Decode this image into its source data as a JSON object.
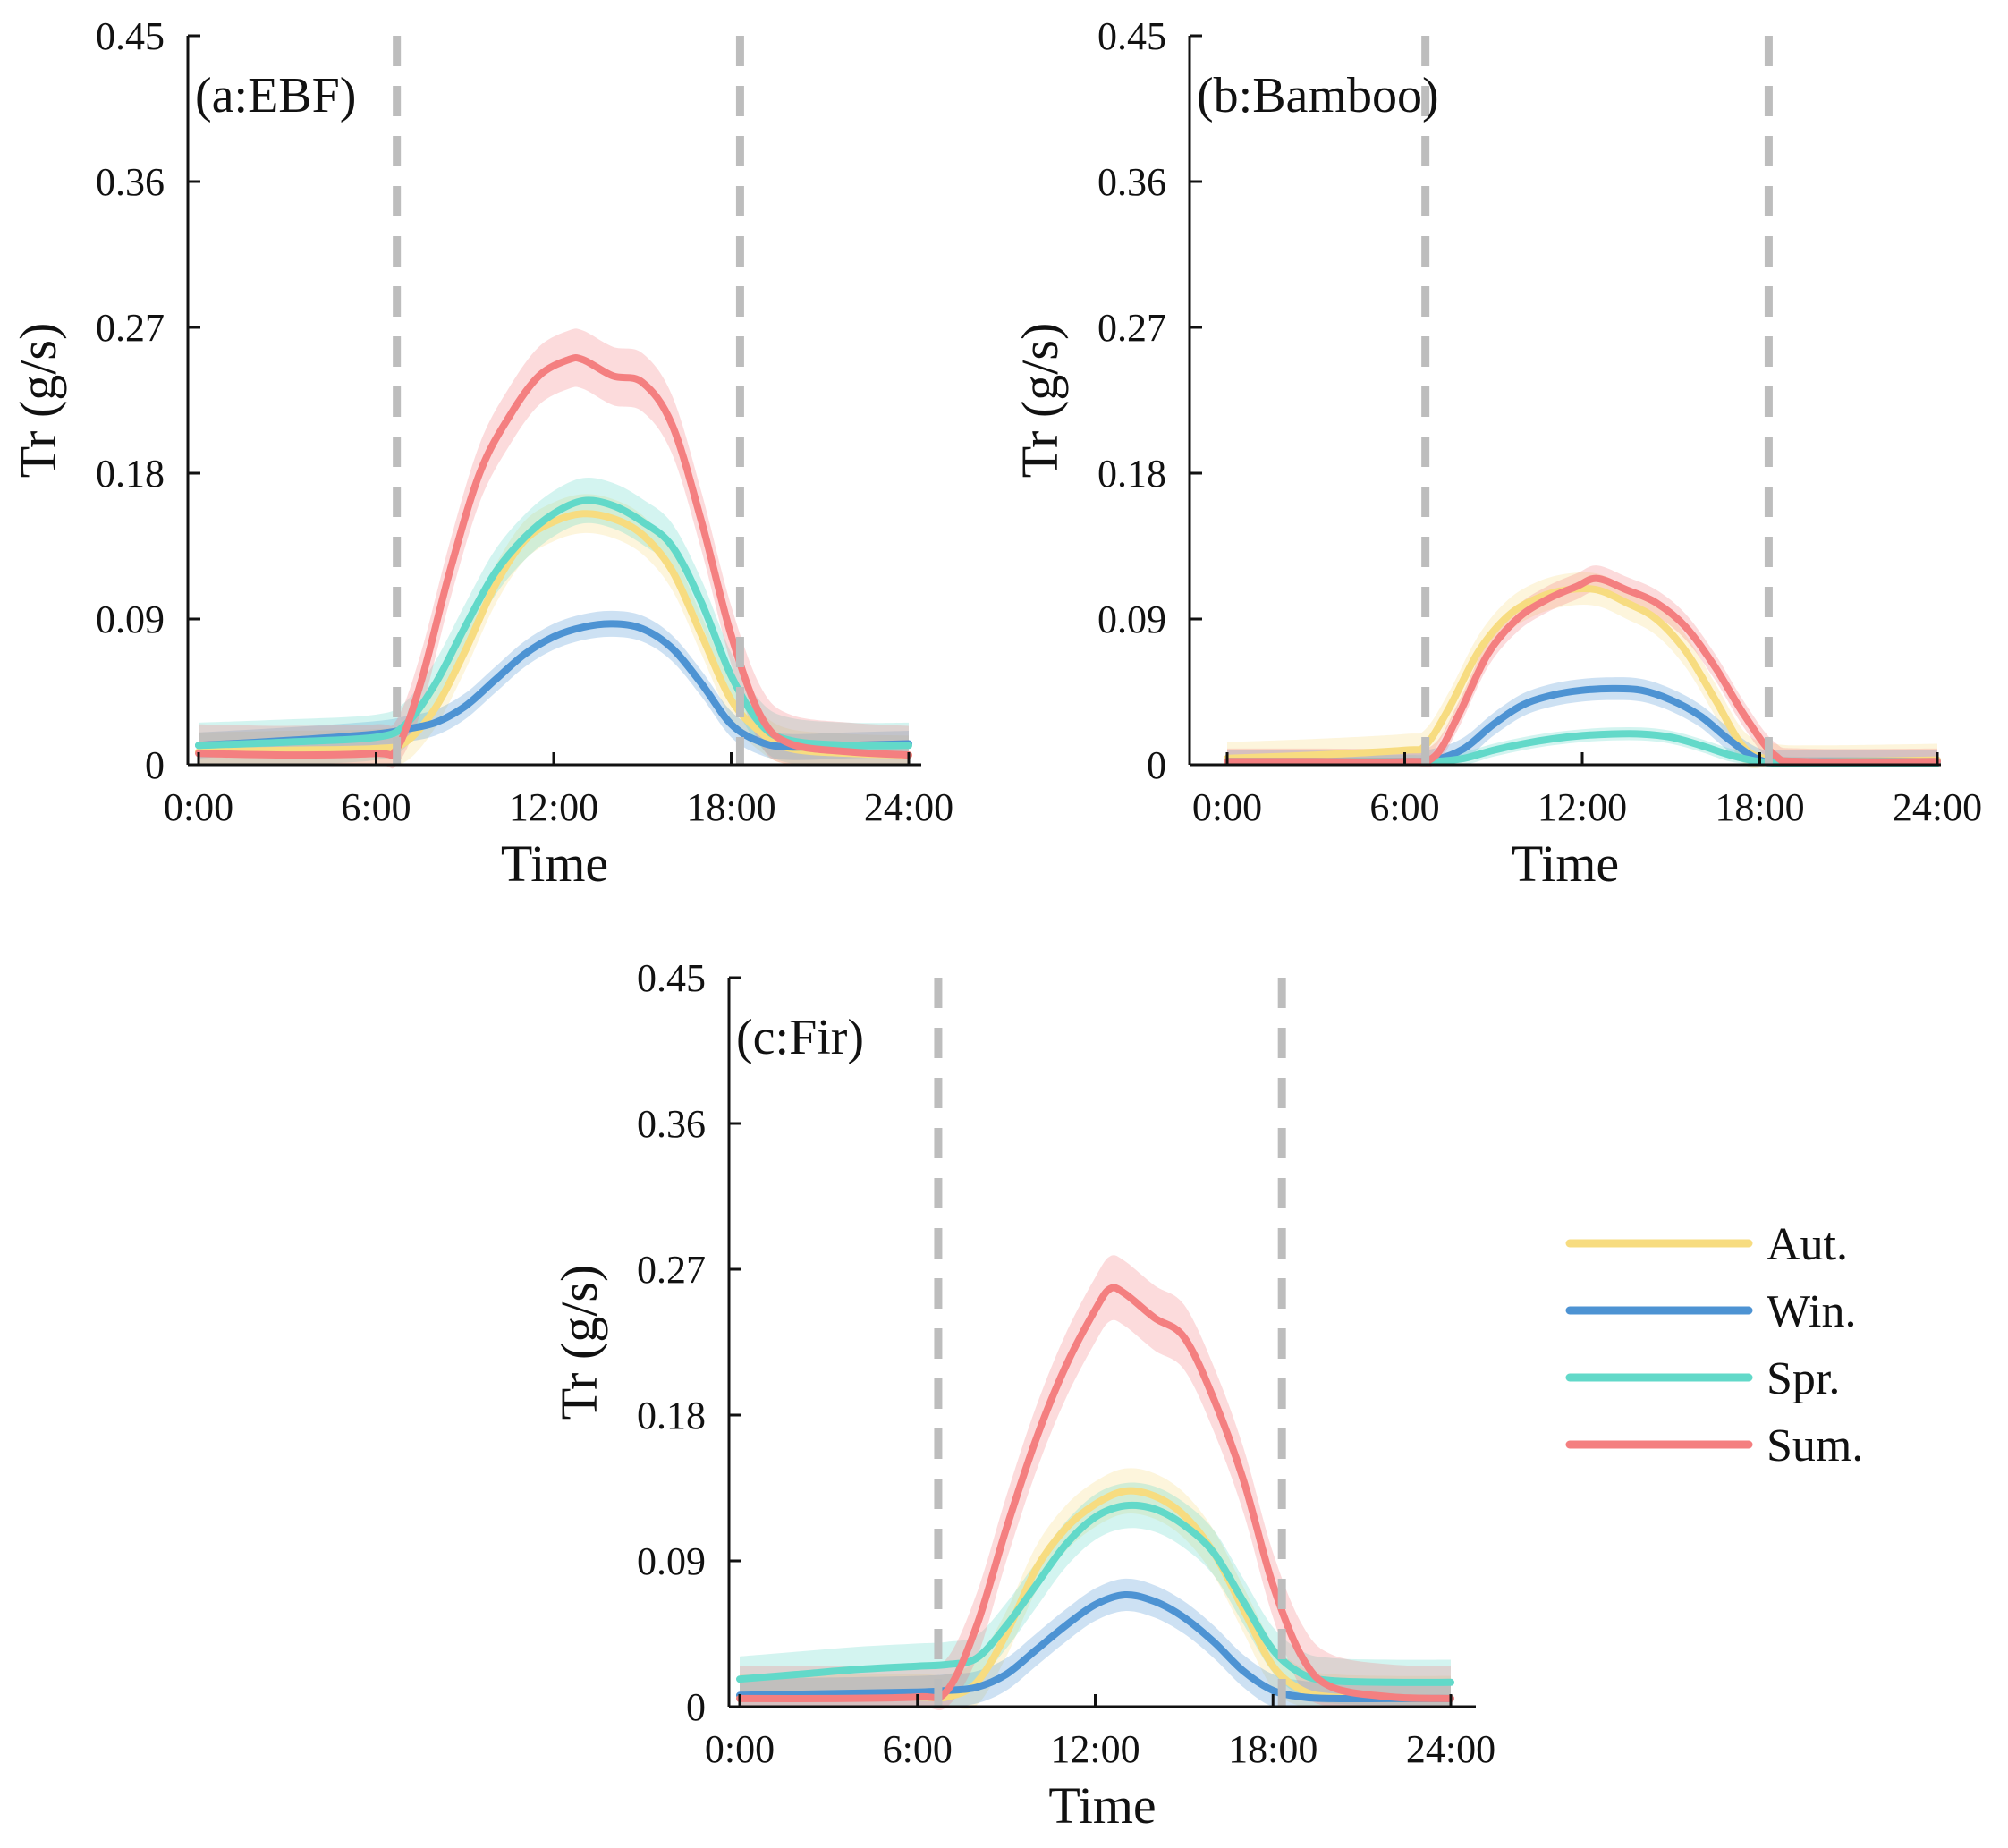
{
  "chart_data": [
    {
      "type": "line",
      "panel": "a",
      "label": "(a:EBF)",
      "xlabel": "Time",
      "ylabel": "Tr (g/s)",
      "xticks": [
        "0:00",
        "6:00",
        "12:00",
        "18:00",
        "24:00"
      ],
      "yticks": [
        "0",
        "0.09",
        "0.18",
        "0.27",
        "0.36",
        "0.45"
      ],
      "xlim": [
        0,
        24
      ],
      "ylim": [
        0,
        0.45
      ],
      "vlines": [
        6.7,
        18.3
      ],
      "series": [
        {
          "name": "Aut.",
          "color": "#F7DC80",
          "band": 0.012,
          "points": [
            [
              0,
              0.008
            ],
            [
              3,
              0.009
            ],
            [
              6,
              0.01
            ],
            [
              7,
              0.014
            ],
            [
              8,
              0.035
            ],
            [
              9,
              0.07
            ],
            [
              10,
              0.11
            ],
            [
              11,
              0.138
            ],
            [
              12,
              0.15
            ],
            [
              13,
              0.155
            ],
            [
              14,
              0.152
            ],
            [
              15,
              0.142
            ],
            [
              16,
              0.12
            ],
            [
              17,
              0.08
            ],
            [
              18,
              0.04
            ],
            [
              19,
              0.02
            ],
            [
              20,
              0.01
            ],
            [
              22,
              0.007
            ],
            [
              24,
              0.006
            ]
          ]
        },
        {
          "name": "Win.",
          "color": "#4D93D3",
          "band": 0.008,
          "points": [
            [
              0,
              0.012
            ],
            [
              3,
              0.015
            ],
            [
              6,
              0.019
            ],
            [
              7,
              0.022
            ],
            [
              8,
              0.026
            ],
            [
              9,
              0.036
            ],
            [
              10,
              0.052
            ],
            [
              11,
              0.068
            ],
            [
              12,
              0.079
            ],
            [
              13,
              0.085
            ],
            [
              14,
              0.087
            ],
            [
              15,
              0.084
            ],
            [
              16,
              0.072
            ],
            [
              17,
              0.05
            ],
            [
              18,
              0.025
            ],
            [
              19,
              0.014
            ],
            [
              20,
              0.011
            ],
            [
              22,
              0.012
            ],
            [
              24,
              0.013
            ]
          ]
        },
        {
          "name": "Spr.",
          "color": "#62D9C9",
          "band": 0.014,
          "points": [
            [
              0,
              0.012
            ],
            [
              3,
              0.014
            ],
            [
              6,
              0.017
            ],
            [
              7,
              0.025
            ],
            [
              8,
              0.05
            ],
            [
              9,
              0.085
            ],
            [
              10,
              0.118
            ],
            [
              11,
              0.14
            ],
            [
              12,
              0.155
            ],
            [
              13,
              0.163
            ],
            [
              14,
              0.16
            ],
            [
              15,
              0.15
            ],
            [
              16,
              0.135
            ],
            [
              17,
              0.1
            ],
            [
              18,
              0.055
            ],
            [
              19,
              0.025
            ],
            [
              20,
              0.015
            ],
            [
              22,
              0.012
            ],
            [
              24,
              0.012
            ]
          ]
        },
        {
          "name": "Sum.",
          "color": "#F47F80",
          "band": 0.018,
          "points": [
            [
              0,
              0.007
            ],
            [
              3,
              0.006
            ],
            [
              6,
              0.007
            ],
            [
              6.7,
              0.01
            ],
            [
              7.5,
              0.05
            ],
            [
              8.5,
              0.12
            ],
            [
              9.5,
              0.18
            ],
            [
              10.5,
              0.215
            ],
            [
              11.5,
              0.24
            ],
            [
              12.5,
              0.25
            ],
            [
              13,
              0.25
            ],
            [
              14,
              0.24
            ],
            [
              15,
              0.236
            ],
            [
              16,
              0.21
            ],
            [
              17,
              0.15
            ],
            [
              18,
              0.08
            ],
            [
              19,
              0.03
            ],
            [
              20,
              0.013
            ],
            [
              22,
              0.008
            ],
            [
              24,
              0.006
            ]
          ]
        }
      ]
    },
    {
      "type": "line",
      "panel": "b",
      "label": "(b:Bamboo)",
      "xlabel": "Time",
      "ylabel": "Tr (g/s)",
      "xticks": [
        "0:00",
        "6:00",
        "12:00",
        "18:00",
        "24:00"
      ],
      "yticks": [
        "0",
        "0.09",
        "0.18",
        "0.27",
        "0.36",
        "0.45"
      ],
      "xlim": [
        0,
        24
      ],
      "ylim": [
        0,
        0.45
      ],
      "vlines": [
        6.7,
        18.3
      ],
      "series": [
        {
          "name": "Aut.",
          "color": "#F7DC80",
          "band": 0.01,
          "points": [
            [
              0,
              0.004
            ],
            [
              3,
              0.006
            ],
            [
              6,
              0.009
            ],
            [
              6.7,
              0.012
            ],
            [
              7.5,
              0.035
            ],
            [
              8.5,
              0.07
            ],
            [
              9.5,
              0.092
            ],
            [
              10.5,
              0.103
            ],
            [
              11.5,
              0.108
            ],
            [
              12.5,
              0.108
            ],
            [
              13.5,
              0.1
            ],
            [
              14.5,
              0.09
            ],
            [
              15.5,
              0.07
            ],
            [
              16.5,
              0.04
            ],
            [
              17.5,
              0.01
            ],
            [
              18.5,
              0.003
            ],
            [
              20,
              0.002
            ],
            [
              24,
              0.003
            ]
          ]
        },
        {
          "name": "Win.",
          "color": "#4D93D3",
          "band": 0.007,
          "points": [
            [
              0,
              0.002
            ],
            [
              3,
              0.002
            ],
            [
              6,
              0.002
            ],
            [
              7,
              0.003
            ],
            [
              8,
              0.01
            ],
            [
              9,
              0.025
            ],
            [
              10,
              0.037
            ],
            [
              11,
              0.043
            ],
            [
              12,
              0.046
            ],
            [
              13,
              0.047
            ],
            [
              14,
              0.046
            ],
            [
              15,
              0.04
            ],
            [
              16,
              0.03
            ],
            [
              17,
              0.015
            ],
            [
              18,
              0.003
            ],
            [
              19,
              0.002
            ],
            [
              24,
              0.002
            ]
          ]
        },
        {
          "name": "Spr.",
          "color": "#62D9C9",
          "band": 0.004,
          "points": [
            [
              0,
              0.002
            ],
            [
              3,
              0.002
            ],
            [
              6,
              0.002
            ],
            [
              7,
              0.002
            ],
            [
              8,
              0.004
            ],
            [
              9,
              0.009
            ],
            [
              10,
              0.013
            ],
            [
              11,
              0.016
            ],
            [
              12,
              0.018
            ],
            [
              13,
              0.019
            ],
            [
              14,
              0.019
            ],
            [
              15,
              0.017
            ],
            [
              16,
              0.012
            ],
            [
              17,
              0.006
            ],
            [
              18,
              0.002
            ],
            [
              19,
              0.001
            ],
            [
              24,
              0.001
            ]
          ]
        },
        {
          "name": "Sum.",
          "color": "#F47F80",
          "band": 0.008,
          "points": [
            [
              0,
              0.002
            ],
            [
              3,
              0.002
            ],
            [
              6,
              0.002
            ],
            [
              7,
              0.005
            ],
            [
              7.8,
              0.03
            ],
            [
              8.8,
              0.068
            ],
            [
              9.8,
              0.09
            ],
            [
              10.8,
              0.102
            ],
            [
              11.8,
              0.11
            ],
            [
              12.5,
              0.115
            ],
            [
              13.5,
              0.108
            ],
            [
              14.5,
              0.1
            ],
            [
              15.5,
              0.085
            ],
            [
              16.5,
              0.06
            ],
            [
              17.5,
              0.03
            ],
            [
              18.5,
              0.006
            ],
            [
              19.5,
              0.002
            ],
            [
              24,
              0.002
            ]
          ]
        }
      ]
    },
    {
      "type": "line",
      "panel": "c",
      "label": "(c:Fir)",
      "xlabel": "Time",
      "ylabel": "Tr (g/s)",
      "xticks": [
        "0:00",
        "6:00",
        "12:00",
        "18:00",
        "24:00"
      ],
      "yticks": [
        "0",
        "0.09",
        "0.18",
        "0.27",
        "0.36",
        "0.45"
      ],
      "xlim": [
        0,
        24
      ],
      "ylim": [
        0,
        0.45
      ],
      "vlines": [
        6.7,
        18.3
      ],
      "series": [
        {
          "name": "Aut.",
          "color": "#F7DC80",
          "band": 0.014,
          "points": [
            [
              0,
              0.006
            ],
            [
              3,
              0.006
            ],
            [
              6,
              0.006
            ],
            [
              7,
              0.006
            ],
            [
              8,
              0.015
            ],
            [
              9,
              0.045
            ],
            [
              10,
              0.085
            ],
            [
              11,
              0.11
            ],
            [
              12,
              0.125
            ],
            [
              13,
              0.133
            ],
            [
              14,
              0.13
            ],
            [
              15,
              0.118
            ],
            [
              16,
              0.095
            ],
            [
              17,
              0.06
            ],
            [
              18,
              0.025
            ],
            [
              19,
              0.01
            ],
            [
              20,
              0.006
            ],
            [
              22,
              0.005
            ],
            [
              24,
              0.005
            ]
          ]
        },
        {
          "name": "Win.",
          "color": "#4D93D3",
          "band": 0.01,
          "points": [
            [
              0,
              0.007
            ],
            [
              3,
              0.008
            ],
            [
              6,
              0.009
            ],
            [
              7,
              0.01
            ],
            [
              8,
              0.012
            ],
            [
              9,
              0.02
            ],
            [
              10,
              0.035
            ],
            [
              11,
              0.05
            ],
            [
              12,
              0.063
            ],
            [
              13,
              0.069
            ],
            [
              14,
              0.065
            ],
            [
              15,
              0.055
            ],
            [
              16,
              0.04
            ],
            [
              17,
              0.022
            ],
            [
              18,
              0.01
            ],
            [
              19,
              0.006
            ],
            [
              20,
              0.005
            ],
            [
              22,
              0.005
            ],
            [
              24,
              0.005
            ]
          ]
        },
        {
          "name": "Spr.",
          "color": "#62D9C9",
          "band": 0.014,
          "points": [
            [
              0,
              0.017
            ],
            [
              2,
              0.02
            ],
            [
              4,
              0.023
            ],
            [
              6,
              0.025
            ],
            [
              7,
              0.026
            ],
            [
              8,
              0.03
            ],
            [
              9,
              0.05
            ],
            [
              10,
              0.075
            ],
            [
              11,
              0.1
            ],
            [
              12,
              0.117
            ],
            [
              13,
              0.124
            ],
            [
              14,
              0.122
            ],
            [
              15,
              0.112
            ],
            [
              16,
              0.095
            ],
            [
              17,
              0.065
            ],
            [
              18,
              0.035
            ],
            [
              19,
              0.02
            ],
            [
              20,
              0.016
            ],
            [
              22,
              0.015
            ],
            [
              24,
              0.015
            ]
          ]
        },
        {
          "name": "Sum.",
          "color": "#F47F80",
          "band": 0.02,
          "points": [
            [
              0,
              0.005
            ],
            [
              3,
              0.005
            ],
            [
              6,
              0.006
            ],
            [
              7,
              0.01
            ],
            [
              8,
              0.05
            ],
            [
              9,
              0.11
            ],
            [
              10,
              0.165
            ],
            [
              11,
              0.21
            ],
            [
              12,
              0.245
            ],
            [
              12.5,
              0.258
            ],
            [
              13,
              0.255
            ],
            [
              14,
              0.24
            ],
            [
              15,
              0.228
            ],
            [
              16,
              0.19
            ],
            [
              17,
              0.14
            ],
            [
              18,
              0.075
            ],
            [
              19,
              0.03
            ],
            [
              20,
              0.012
            ],
            [
              22,
              0.006
            ],
            [
              24,
              0.005
            ]
          ]
        }
      ]
    }
  ],
  "legend": [
    {
      "name": "Aut.",
      "color": "#F7DC80"
    },
    {
      "name": "Win.",
      "color": "#4D93D3"
    },
    {
      "name": "Spr.",
      "color": "#62D9C9"
    },
    {
      "name": "Sum.",
      "color": "#F47F80"
    }
  ],
  "vline_color": "#BDBDBD"
}
